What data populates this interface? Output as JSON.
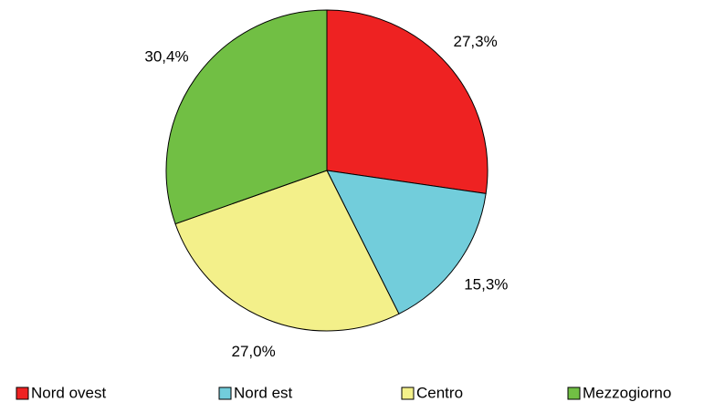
{
  "chart_data": {
    "type": "pie",
    "categories": [
      "Nord ovest",
      "Nord est",
      "Centro",
      "Mezzogiorno"
    ],
    "values": [
      27.3,
      15.3,
      27.0,
      30.4
    ],
    "value_labels": [
      "27,3%",
      "15,3%",
      "27,0%",
      "30,4%"
    ],
    "colors": [
      "#ee2222",
      "#72cddb",
      "#f3f08a",
      "#71bf44"
    ],
    "legend": "bottom"
  }
}
